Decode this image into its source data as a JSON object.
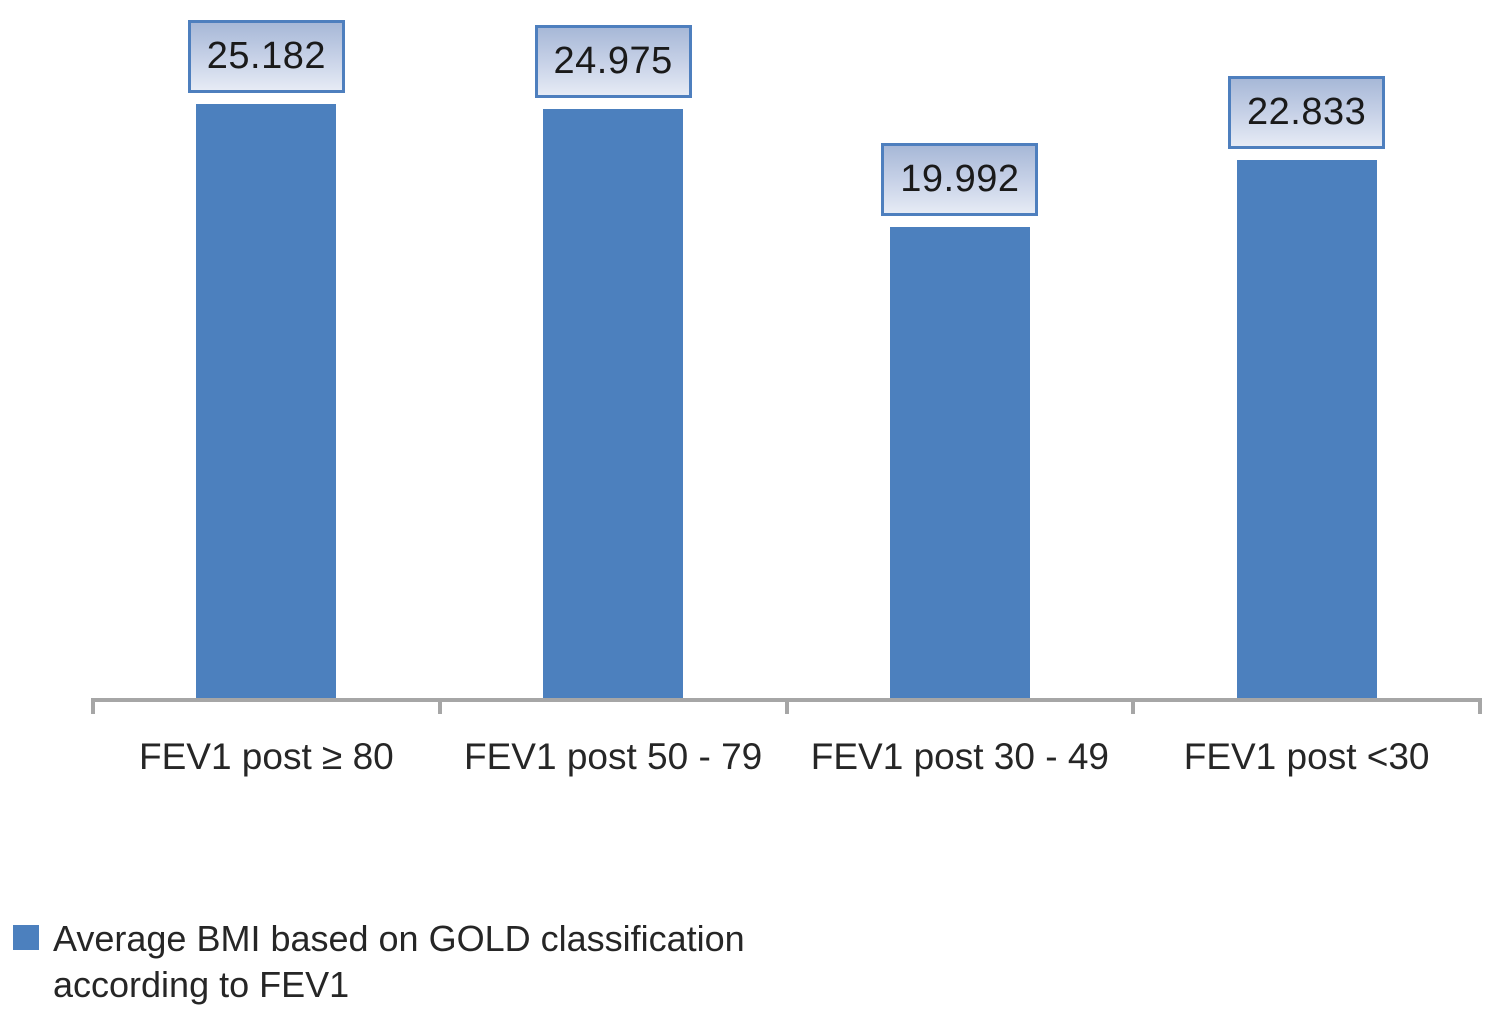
{
  "chart_data": {
    "type": "bar",
    "title": "",
    "xlabel": "",
    "ylabel": "",
    "categories": [
      "FEV1 post ≥ 80",
      "FEV1 post 50 - 79",
      "FEV1 post 30 - 49",
      "FEV1 post <30"
    ],
    "values": [
      25.182,
      24.975,
      19.992,
      22.833
    ],
    "value_labels": [
      "25.182",
      "24.975",
      "19.992",
      "22.833"
    ],
    "ylim": [
      0,
      29.5
    ],
    "grid": false,
    "axis_ticks": "category-boundaries",
    "legend": {
      "label": "Average BMI based on GOLD classification according to FEV1",
      "position": "bottom-left"
    },
    "colors": {
      "bar": "#4C80BE",
      "axis": "#A6A6A6",
      "text": "#262626",
      "value_box_border": "#4E7FBE",
      "value_box_gradient_top": "#A7B8D7",
      "value_box_gradient_mid": "#C9D3E8",
      "value_box_gradient_bottom": "#E6EBF5"
    }
  }
}
